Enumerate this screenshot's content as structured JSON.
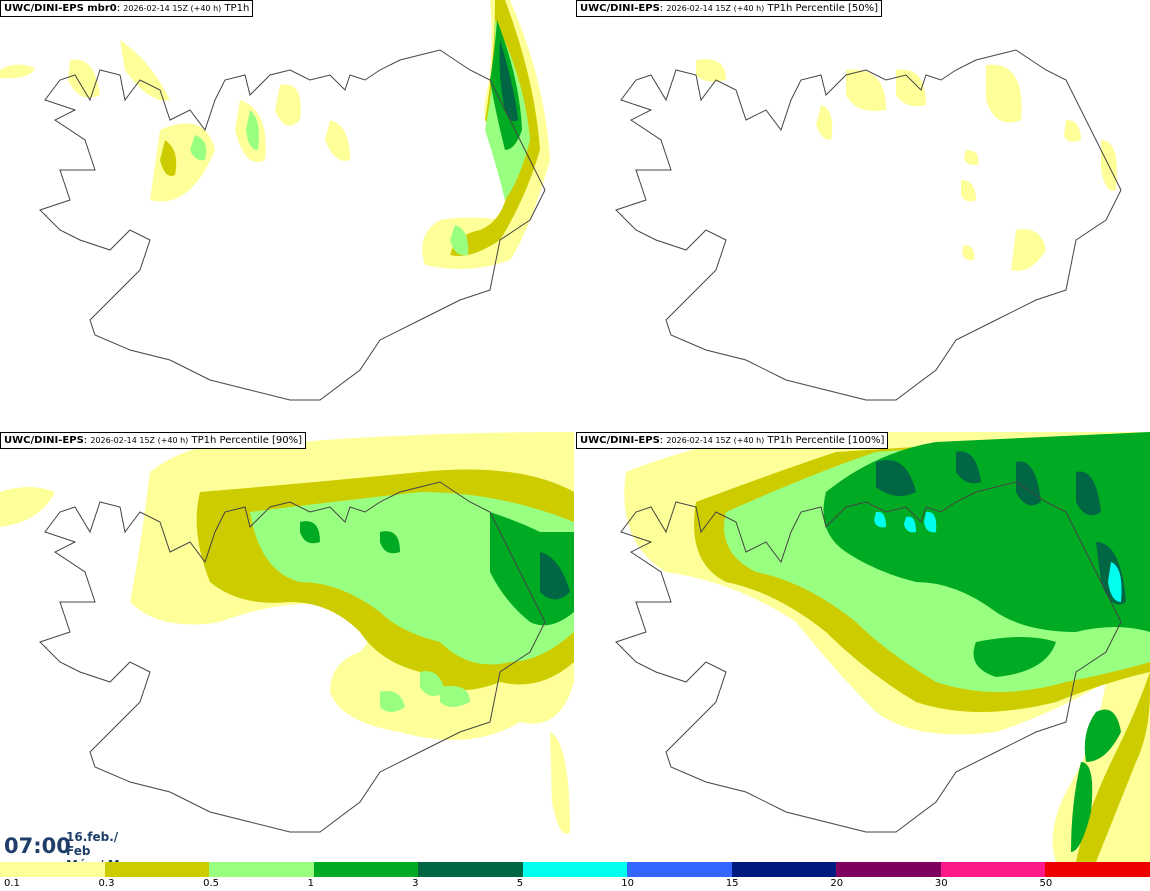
{
  "panels": [
    {
      "model": "UWC/DINI-EPS mbr0",
      "run": "2026-02-14 15Z (+40 h)",
      "product": "TP1h"
    },
    {
      "model": "UWC/DINI-EPS",
      "run": "2026-02-14 15Z (+40 h)",
      "product": "TP1h Percentile [50%]"
    },
    {
      "model": "UWC/DINI-EPS",
      "run": "2026-02-14 15Z (+40 h)",
      "product": "TP1h Percentile [90%]"
    },
    {
      "model": "UWC/DINI-EPS",
      "run": "2026-02-14 15Z (+40 h)",
      "product": "TP1h Percentile [100%]"
    }
  ],
  "valid_time": {
    "time": "07:00",
    "date_line1": "16.feb./ Feb",
    "date_line2": "Mán./ Mon"
  },
  "legend": [
    {
      "label": "0.1",
      "color": "#ffff99"
    },
    {
      "label": "0.3",
      "color": "#cccc00"
    },
    {
      "label": "0.5",
      "color": "#99ff80"
    },
    {
      "label": "1",
      "color": "#00aa22"
    },
    {
      "label": "3",
      "color": "#006644"
    },
    {
      "label": "5",
      "color": "#00ffee"
    },
    {
      "label": "10",
      "color": "#3366ff"
    },
    {
      "label": "15",
      "color": "#001a80"
    },
    {
      "label": "20",
      "color": "#800060"
    },
    {
      "label": "30",
      "color": "#ff1a8c"
    },
    {
      "label": "50",
      "color": "#ee0000"
    }
  ]
}
